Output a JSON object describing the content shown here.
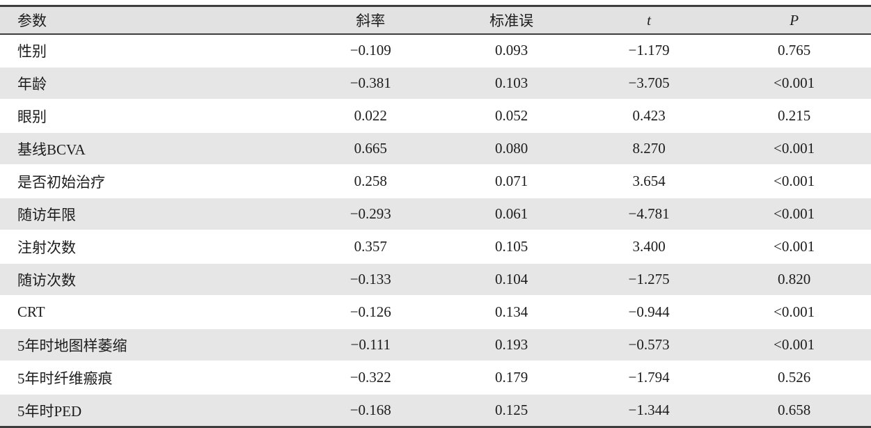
{
  "table": {
    "columns": [
      {
        "key": "param",
        "label": "参数",
        "align": "left",
        "italic": false
      },
      {
        "key": "slope",
        "label": "斜率",
        "align": "center",
        "italic": false
      },
      {
        "key": "se",
        "label": "标准误",
        "align": "center",
        "italic": false
      },
      {
        "key": "t",
        "label": "t",
        "align": "center",
        "italic": true
      },
      {
        "key": "p",
        "label": "P",
        "align": "center",
        "italic": true
      }
    ],
    "rows": [
      {
        "param": "性别",
        "slope": "−0.109",
        "se": "0.093",
        "t": "−1.179",
        "p": "0.765"
      },
      {
        "param": "年龄",
        "slope": "−0.381",
        "se": "0.103",
        "t": "−3.705",
        "p": "<0.001"
      },
      {
        "param": "眼别",
        "slope": "0.022",
        "se": "0.052",
        "t": "0.423",
        "p": "0.215"
      },
      {
        "param": "基线BCVA",
        "slope": "0.665",
        "se": "0.080",
        "t": "8.270",
        "p": "<0.001"
      },
      {
        "param": "是否初始治疗",
        "slope": "0.258",
        "se": "0.071",
        "t": "3.654",
        "p": "<0.001"
      },
      {
        "param": "随访年限",
        "slope": "−0.293",
        "se": "0.061",
        "t": "−4.781",
        "p": "<0.001"
      },
      {
        "param": "注射次数",
        "slope": "0.357",
        "se": "0.105",
        "t": "3.400",
        "p": "<0.001"
      },
      {
        "param": "随访次数",
        "slope": "−0.133",
        "se": "0.104",
        "t": "−1.275",
        "p": "0.820"
      },
      {
        "param": "CRT",
        "slope": "−0.126",
        "se": "0.134",
        "t": "−0.944",
        "p": "<0.001"
      },
      {
        "param": "5年时地图样萎缩",
        "slope": "−0.111",
        "se": "0.193",
        "t": "−0.573",
        "p": "<0.001"
      },
      {
        "param": "5年时纤维瘢痕",
        "slope": "−0.322",
        "se": "0.179",
        "t": "−1.794",
        "p": "0.526"
      },
      {
        "param": "5年时PED",
        "slope": "−0.168",
        "se": "0.125",
        "t": "−1.344",
        "p": "0.658"
      }
    ],
    "colors": {
      "stripe": "#e6e6e6",
      "header_bg": "#e2e2e2",
      "rule": "#3d3d3d"
    }
  },
  "chart_data": {
    "type": "table",
    "title": "",
    "columns": [
      "参数",
      "斜率",
      "标准误",
      "t",
      "P"
    ],
    "rows": [
      [
        "性别",
        "−0.109",
        "0.093",
        "−1.179",
        "0.765"
      ],
      [
        "年龄",
        "−0.381",
        "0.103",
        "−3.705",
        "<0.001"
      ],
      [
        "眼别",
        "0.022",
        "0.052",
        "0.423",
        "0.215"
      ],
      [
        "基线BCVA",
        "0.665",
        "0.080",
        "8.270",
        "<0.001"
      ],
      [
        "是否初始治疗",
        "0.258",
        "0.071",
        "3.654",
        "<0.001"
      ],
      [
        "随访年限",
        "−0.293",
        "0.061",
        "−4.781",
        "<0.001"
      ],
      [
        "注射次数",
        "0.357",
        "0.105",
        "3.400",
        "<0.001"
      ],
      [
        "随访次数",
        "−0.133",
        "0.104",
        "−1.275",
        "0.820"
      ],
      [
        "CRT",
        "−0.126",
        "0.134",
        "−0.944",
        "<0.001"
      ],
      [
        "5年时地图样萎缩",
        "−0.111",
        "0.193",
        "−0.573",
        "<0.001"
      ],
      [
        "5年时纤维瘢痕",
        "−0.322",
        "0.179",
        "−1.794",
        "0.526"
      ],
      [
        "5年时PED",
        "−0.168",
        "0.125",
        "−1.344",
        "0.658"
      ]
    ]
  }
}
